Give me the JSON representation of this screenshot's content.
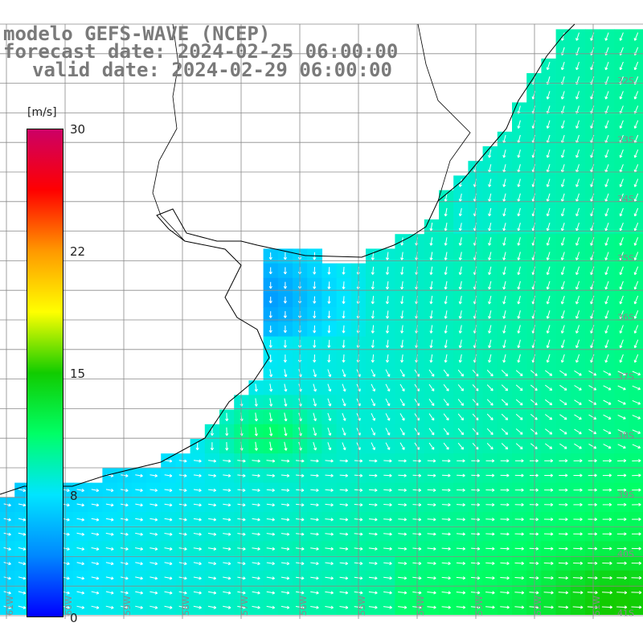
{
  "title": {
    "line1": "modelo GEFS-WAVE (NCEP)",
    "line2": "forecast date: 2024-02-25 06:00:00",
    "line3": "valid date: 2024-02-29 06:00:00"
  },
  "colorbar": {
    "units": "[m/s]",
    "ticks": [
      "0",
      "8",
      "15",
      "22",
      "30"
    ],
    "tick_values": [
      0,
      8,
      15,
      22,
      30
    ],
    "min": 0,
    "max": 30,
    "colors": [
      "#0000ff",
      "#0088ff",
      "#00e5ff",
      "#00ff66",
      "#11cc00",
      "#ffff00",
      "#ff9900",
      "#ff0000",
      "#cc0066"
    ]
  },
  "map": {
    "region": "Rio de la Plata and SW Atlantic",
    "latitude_labels_right": [
      "32S",
      "33S",
      "34S",
      "35S",
      "36S",
      "37S",
      "38S",
      "39S",
      "40S",
      "41S"
    ],
    "longitude_labels_bottom": [
      "61W",
      "60W",
      "59W",
      "58W",
      "57W",
      "56W",
      "55W",
      "54W",
      "53W",
      "52W",
      "51W"
    ],
    "lat_range": [
      -41.5,
      -31.0
    ],
    "lon_range": [
      -61.0,
      -50.0
    ],
    "land_color": "#ffffff",
    "grid_color": "#8a8a8a",
    "coast_color": "#000000",
    "arrow_color": "#ffffff",
    "wind_pattern": "southerly flow turning westerly offshore; stronger winds (10-14 m/s) to the southeast and along the Argentine coast"
  }
}
